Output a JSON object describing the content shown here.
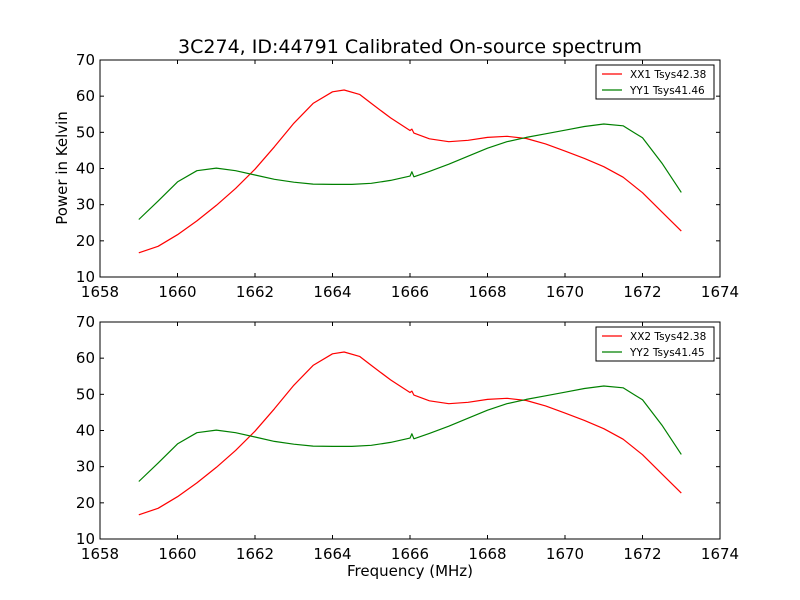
{
  "figure": {
    "title": "3C274, ID:44791 Calibrated On-source spectrum",
    "xlabel": "Frequency (MHz)",
    "ylabel": "Power in Kelvin"
  },
  "colors": {
    "XX": "#ff0000",
    "YY": "#008000"
  },
  "chart_data": [
    {
      "type": "line",
      "title": "3C274, ID:44791 Calibrated On-source spectrum",
      "xlabel": "",
      "ylabel": "Power in Kelvin",
      "xlim": [
        1658,
        1674
      ],
      "ylim": [
        10,
        70
      ],
      "xticks": [
        1658,
        1660,
        1662,
        1664,
        1666,
        1668,
        1670,
        1672,
        1674
      ],
      "yticks": [
        10,
        20,
        30,
        40,
        50,
        60,
        70
      ],
      "grid": false,
      "legend_position": "top-right",
      "series": [
        {
          "name": "XX1 Tsys42.38",
          "color": "#ff0000",
          "x": [
            1659.0,
            1659.5,
            1660.0,
            1660.5,
            1661.0,
            1661.5,
            1662.0,
            1662.5,
            1663.0,
            1663.5,
            1664.0,
            1664.3,
            1664.7,
            1665.0,
            1665.5,
            1666.0,
            1666.05,
            1666.1,
            1666.5,
            1667.0,
            1667.5,
            1668.0,
            1668.5,
            1669.0,
            1669.5,
            1670.0,
            1670.5,
            1671.0,
            1671.5,
            1672.0,
            1672.5,
            1673.0
          ],
          "y": [
            16.7,
            18.5,
            21.7,
            25.5,
            29.8,
            34.5,
            39.8,
            46.0,
            52.5,
            58.0,
            61.2,
            61.7,
            60.5,
            58.0,
            54.0,
            50.5,
            50.9,
            49.8,
            48.2,
            47.4,
            47.8,
            48.6,
            48.9,
            48.3,
            46.8,
            44.8,
            42.8,
            40.5,
            37.6,
            33.3,
            28.0,
            22.7
          ]
        },
        {
          "name": "YY1 Tsys41.46",
          "color": "#008000",
          "x": [
            1659.0,
            1659.5,
            1660.0,
            1660.5,
            1661.0,
            1661.5,
            1662.0,
            1662.5,
            1663.0,
            1663.5,
            1664.0,
            1664.5,
            1665.0,
            1665.5,
            1666.0,
            1666.05,
            1666.1,
            1666.5,
            1667.0,
            1667.5,
            1668.0,
            1668.5,
            1669.0,
            1669.5,
            1670.0,
            1670.5,
            1671.0,
            1671.5,
            1672.0,
            1672.5,
            1673.0
          ],
          "y": [
            25.9,
            31.0,
            36.3,
            39.4,
            40.1,
            39.4,
            38.2,
            37.0,
            36.2,
            35.7,
            35.6,
            35.6,
            35.9,
            36.7,
            37.9,
            39.1,
            37.7,
            39.2,
            41.2,
            43.4,
            45.6,
            47.4,
            48.6,
            49.6,
            50.6,
            51.6,
            52.3,
            51.8,
            48.5,
            41.5,
            33.4
          ]
        }
      ]
    },
    {
      "type": "line",
      "title": "",
      "xlabel": "Frequency (MHz)",
      "ylabel": "",
      "xlim": [
        1658,
        1674
      ],
      "ylim": [
        10,
        70
      ],
      "xticks": [
        1658,
        1660,
        1662,
        1664,
        1666,
        1668,
        1670,
        1672,
        1674
      ],
      "yticks": [
        10,
        20,
        30,
        40,
        50,
        60,
        70
      ],
      "grid": false,
      "legend_position": "top-right",
      "series": [
        {
          "name": "XX2 Tsys42.38",
          "color": "#ff0000",
          "x": [
            1659.0,
            1659.5,
            1660.0,
            1660.5,
            1661.0,
            1661.5,
            1662.0,
            1662.5,
            1663.0,
            1663.5,
            1664.0,
            1664.3,
            1664.7,
            1665.0,
            1665.5,
            1666.0,
            1666.05,
            1666.1,
            1666.5,
            1667.0,
            1667.5,
            1668.0,
            1668.5,
            1669.0,
            1669.5,
            1670.0,
            1670.5,
            1671.0,
            1671.5,
            1672.0,
            1672.5,
            1673.0
          ],
          "y": [
            16.7,
            18.5,
            21.7,
            25.5,
            29.8,
            34.5,
            39.8,
            46.0,
            52.5,
            58.0,
            61.2,
            61.7,
            60.5,
            58.0,
            54.0,
            50.5,
            50.9,
            49.8,
            48.2,
            47.4,
            47.8,
            48.6,
            48.9,
            48.3,
            46.8,
            44.8,
            42.8,
            40.5,
            37.6,
            33.3,
            28.0,
            22.7
          ]
        },
        {
          "name": "YY2 Tsys41.45",
          "color": "#008000",
          "x": [
            1659.0,
            1659.5,
            1660.0,
            1660.5,
            1661.0,
            1661.5,
            1662.0,
            1662.5,
            1663.0,
            1663.5,
            1664.0,
            1664.5,
            1665.0,
            1665.5,
            1666.0,
            1666.05,
            1666.1,
            1666.5,
            1667.0,
            1667.5,
            1668.0,
            1668.5,
            1669.0,
            1669.5,
            1670.0,
            1670.5,
            1671.0,
            1671.5,
            1672.0,
            1672.5,
            1673.0
          ],
          "y": [
            25.9,
            31.0,
            36.3,
            39.4,
            40.1,
            39.4,
            38.2,
            37.0,
            36.2,
            35.7,
            35.6,
            35.6,
            35.9,
            36.7,
            37.9,
            39.1,
            37.7,
            39.2,
            41.2,
            43.4,
            45.6,
            47.4,
            48.6,
            49.6,
            50.6,
            51.6,
            52.3,
            51.8,
            48.5,
            41.5,
            33.4
          ]
        }
      ]
    }
  ]
}
